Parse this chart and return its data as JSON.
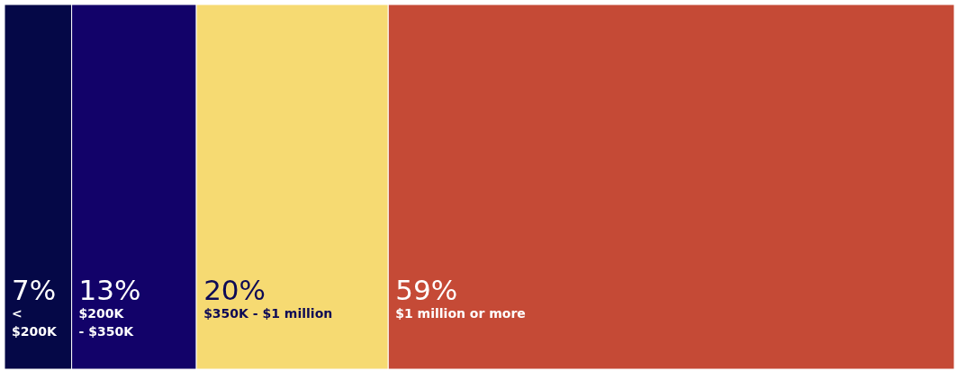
{
  "chart_data": {
    "type": "bar",
    "orientation": "horizontal",
    "stacked": true,
    "categories": [
      null
    ],
    "xlim": [
      0,
      99
    ],
    "series": [
      {
        "name": "< $200K",
        "color": "#050847",
        "values": [
          7
        ],
        "value_labels": [
          "7%"
        ]
      },
      {
        "name": "$200K - $350K",
        "color": "#120269",
        "values": [
          13
        ],
        "value_labels": [
          "13%"
        ]
      },
      {
        "name": "$350K - $1 million",
        "color": "#f6da72",
        "values": [
          20
        ],
        "value_labels": [
          "20%"
        ]
      },
      {
        "name": "$1 million or more",
        "color": "#c54a36",
        "values": [
          59
        ],
        "value_labels": [
          "59%"
        ]
      }
    ]
  }
}
